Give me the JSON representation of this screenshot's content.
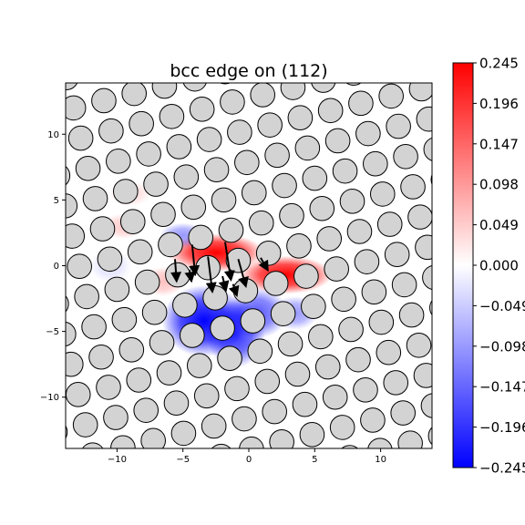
{
  "chart_data": {
    "type": "heatmap",
    "title": "bcc edge on (112)",
    "xlabel": "",
    "ylabel": "",
    "xlim": [
      -13.9,
      13.9
    ],
    "ylim": [
      -13.9,
      13.9
    ],
    "x_ticks": [
      -10,
      -5,
      0,
      5,
      10
    ],
    "y_ticks": [
      -10,
      -5,
      0,
      5,
      10
    ],
    "x_tick_labels": [
      "−10",
      "−5",
      "0",
      "5",
      "10"
    ],
    "y_tick_labels": [
      "−10",
      "−5",
      "0",
      "5",
      "10"
    ],
    "grid": false,
    "colorbar": {
      "colormap": "bwr",
      "range": [
        -0.245,
        0.245
      ],
      "ticks": [
        0.245,
        0.196,
        0.147,
        0.098,
        0.049,
        0.0,
        -0.049,
        -0.098,
        -0.147,
        -0.196,
        -0.245
      ],
      "tick_labels": [
        "0.245",
        "0.196",
        "0.147",
        "0.098",
        "0.049",
        "0.000",
        "−0.049",
        "−0.098",
        "−0.147",
        "−0.196",
        "−0.245"
      ]
    },
    "atoms": {
      "lattice_vector_a": [
        2.3,
        0.55
      ],
      "lattice_vector_b": [
        -0.55,
        2.3
      ],
      "face_color": "#d3d3d3",
      "edge_color": "#000000"
    },
    "field_blobs": [
      {
        "x": -2.5,
        "y": 1.0,
        "sx": 2.3,
        "sy": 0.9,
        "value": 0.245
      },
      {
        "x": 2.8,
        "y": -0.7,
        "sx": 2.2,
        "sy": 0.9,
        "value": 0.245
      },
      {
        "x": -3.4,
        "y": -4.2,
        "sx": 2.0,
        "sy": 1.7,
        "value": -0.245
      },
      {
        "x": -1.0,
        "y": -5.2,
        "sx": 1.4,
        "sy": 1.6,
        "value": -0.2
      },
      {
        "x": 0.6,
        "y": -3.6,
        "sx": 1.5,
        "sy": 1.2,
        "value": -0.16
      },
      {
        "x": -5.0,
        "y": 2.3,
        "sx": 1.1,
        "sy": 0.6,
        "value": -0.1
      },
      {
        "x": 3.5,
        "y": -3.6,
        "sx": 1.1,
        "sy": 0.8,
        "value": -0.1
      },
      {
        "x": -6.5,
        "y": -1.2,
        "sx": 1.0,
        "sy": 0.7,
        "value": 0.06
      },
      {
        "x": -9.5,
        "y": 3.0,
        "sx": 1.0,
        "sy": 0.6,
        "value": 0.05
      },
      {
        "x": -10.5,
        "y": 0.0,
        "sx": 1.0,
        "sy": 0.8,
        "value": -0.03
      },
      {
        "x": -9.0,
        "y": 5.5,
        "sx": 1.0,
        "sy": 0.6,
        "value": 0.035
      }
    ],
    "displacement_arrows": [
      {
        "x": -1.8,
        "y": 1.8,
        "dx": 0.4,
        "dy": -2.6
      },
      {
        "x": -3.1,
        "y": 0.7,
        "dx": 0.3,
        "dy": -2.4
      },
      {
        "x": -0.8,
        "y": 0.5,
        "dx": 0.5,
        "dy": -1.8
      },
      {
        "x": -4.3,
        "y": 1.6,
        "dx": 0.2,
        "dy": -2.0
      },
      {
        "x": -5.6,
        "y": 0.5,
        "dx": 0.1,
        "dy": -1.4
      },
      {
        "x": 0.9,
        "y": 0.6,
        "dx": 0.4,
        "dy": -0.7
      },
      {
        "x": -2.0,
        "y": -0.8,
        "dx": 0.2,
        "dy": -0.8
      },
      {
        "x": -1.2,
        "y": -1.4,
        "dx": 0.2,
        "dy": -0.6
      },
      {
        "x": -4.5,
        "y": -0.3,
        "dx": 0.1,
        "dy": -0.6
      }
    ]
  }
}
